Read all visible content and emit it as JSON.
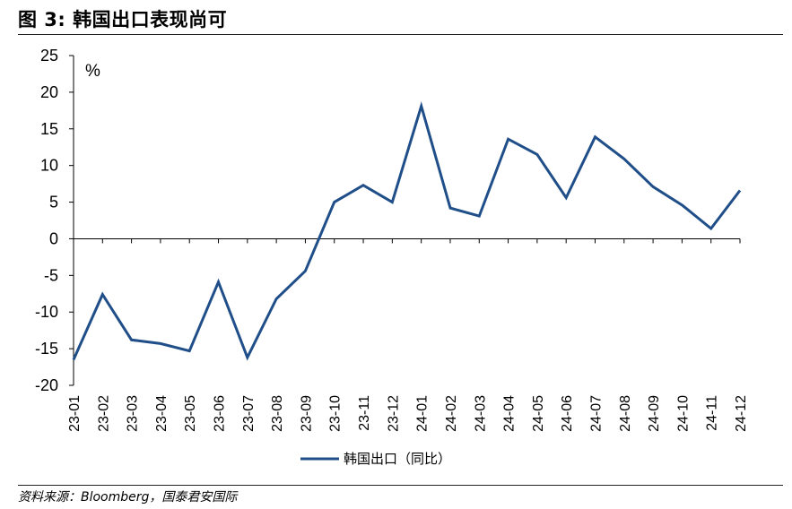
{
  "figure": {
    "title": "图 3:  韩国出口表现尚可",
    "source": "资料来源：Bloomberg，国泰君安国际"
  },
  "chart_data": {
    "type": "line",
    "unit_label": "%",
    "categories": [
      "23-01",
      "23-02",
      "23-03",
      "23-04",
      "23-05",
      "23-06",
      "23-07",
      "23-08",
      "23-09",
      "23-10",
      "23-11",
      "23-12",
      "24-01",
      "24-02",
      "24-03",
      "24-04",
      "24-05",
      "24-06",
      "24-07",
      "24-08",
      "24-09",
      "24-10",
      "24-11",
      "24-12"
    ],
    "series": [
      {
        "name": "韩国出口（同比）",
        "color": "#1f4e89",
        "values": [
          -16.5,
          -7.6,
          -13.8,
          -14.3,
          -15.3,
          -5.9,
          -16.2,
          -8.2,
          -4.4,
          5.0,
          7.3,
          5.0,
          18.1,
          4.2,
          3.1,
          13.6,
          11.5,
          5.6,
          13.9,
          10.9,
          7.1,
          4.6,
          1.4,
          6.6
        ]
      }
    ],
    "ylim": [
      -20,
      25
    ],
    "yticks": [
      25,
      20,
      15,
      10,
      5,
      0,
      -5,
      -10,
      -15,
      -20
    ],
    "legend": "bottom-center",
    "grid": false
  }
}
